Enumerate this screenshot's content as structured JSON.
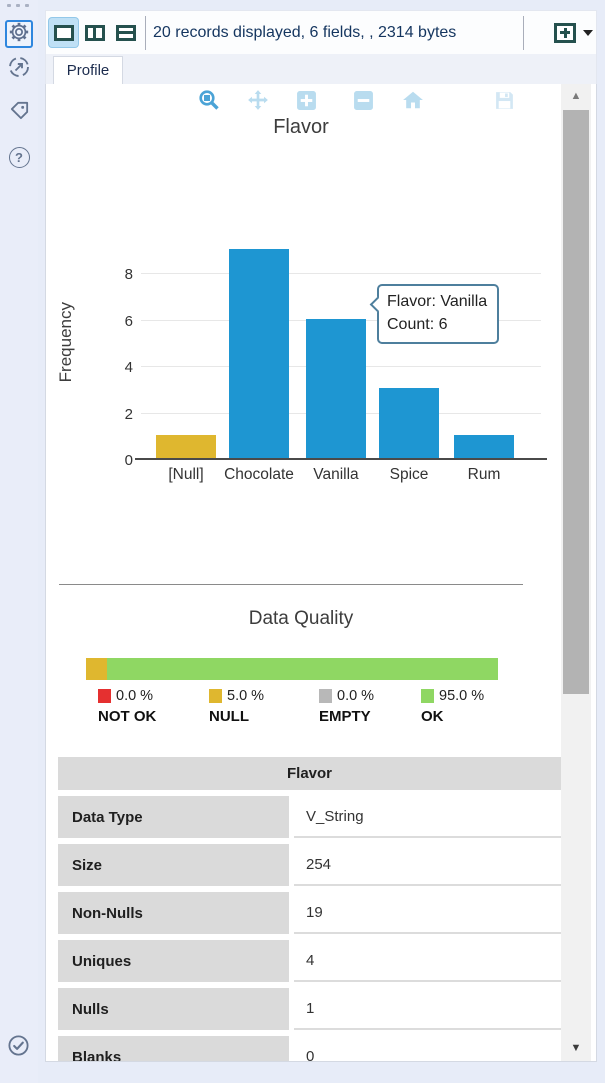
{
  "sidebar": {
    "items": [
      {
        "name": "settings",
        "selected": true
      },
      {
        "name": "run"
      },
      {
        "name": "tag"
      },
      {
        "name": "help"
      }
    ],
    "bottom_item": {
      "name": "check"
    }
  },
  "toolbar": {
    "layout_buttons": [
      "single-pane",
      "split-vertical",
      "split-horizontal"
    ],
    "status_text": "20 records displayed, 6 fields, , 2314 bytes",
    "new_window_button": "open-results-in-new-window"
  },
  "tabs": [
    {
      "label": "Profile",
      "active": true
    }
  ],
  "chart_toolbar": {
    "icons": [
      "zoom",
      "pan",
      "zoom-in",
      "zoom-out",
      "home",
      "save"
    ],
    "active": "zoom"
  },
  "chart_data": {
    "type": "bar",
    "title": "Flavor",
    "ylabel": "Frequency",
    "categories": [
      "[Null]",
      "Chocolate",
      "Vanilla",
      "Spice",
      "Rum"
    ],
    "values": [
      1,
      9,
      6,
      3,
      1
    ],
    "bar_colors": [
      "#dfb72f",
      "#1e96d2",
      "#1e96d2",
      "#1e96d2",
      "#1e96d2"
    ],
    "yticks": [
      0,
      2,
      4,
      6,
      8
    ],
    "ylim": [
      0,
      10.2
    ],
    "grid": true,
    "tooltip": {
      "line1": "Flavor: Vanilla",
      "line2": "Count: 6",
      "target": "Vanilla"
    }
  },
  "data_quality": {
    "title": "Data Quality",
    "bar_segments": [
      {
        "color": "#dfb72f",
        "pct": 5
      },
      {
        "color": "#8fd763",
        "pct": 95
      }
    ],
    "legend": [
      {
        "pct": "0.0 %",
        "label": "NOT OK",
        "color": "#e53030"
      },
      {
        "pct": "5.0 %",
        "label": "NULL",
        "color": "#dfb72f"
      },
      {
        "pct": "0.0 %",
        "label": "EMPTY",
        "color": "#b8b8b8"
      },
      {
        "pct": "95.0 %",
        "label": "OK",
        "color": "#8fd763"
      }
    ]
  },
  "field_table": {
    "header": "Flavor",
    "rows": [
      {
        "label": "Data Type",
        "value": "V_String"
      },
      {
        "label": "Size",
        "value": "254"
      },
      {
        "label": "Non-Nulls",
        "value": "19"
      },
      {
        "label": "Uniques",
        "value": "4"
      },
      {
        "label": "Nulls",
        "value": "1"
      },
      {
        "label": "Blanks",
        "value": "0"
      }
    ]
  },
  "colors": {
    "bar_blue": "#1e96d2",
    "bar_yellow": "#dfb72f",
    "dq_green": "#8fd763",
    "selection_blue": "#2e86de",
    "toolbar_icon": "#25514e"
  }
}
